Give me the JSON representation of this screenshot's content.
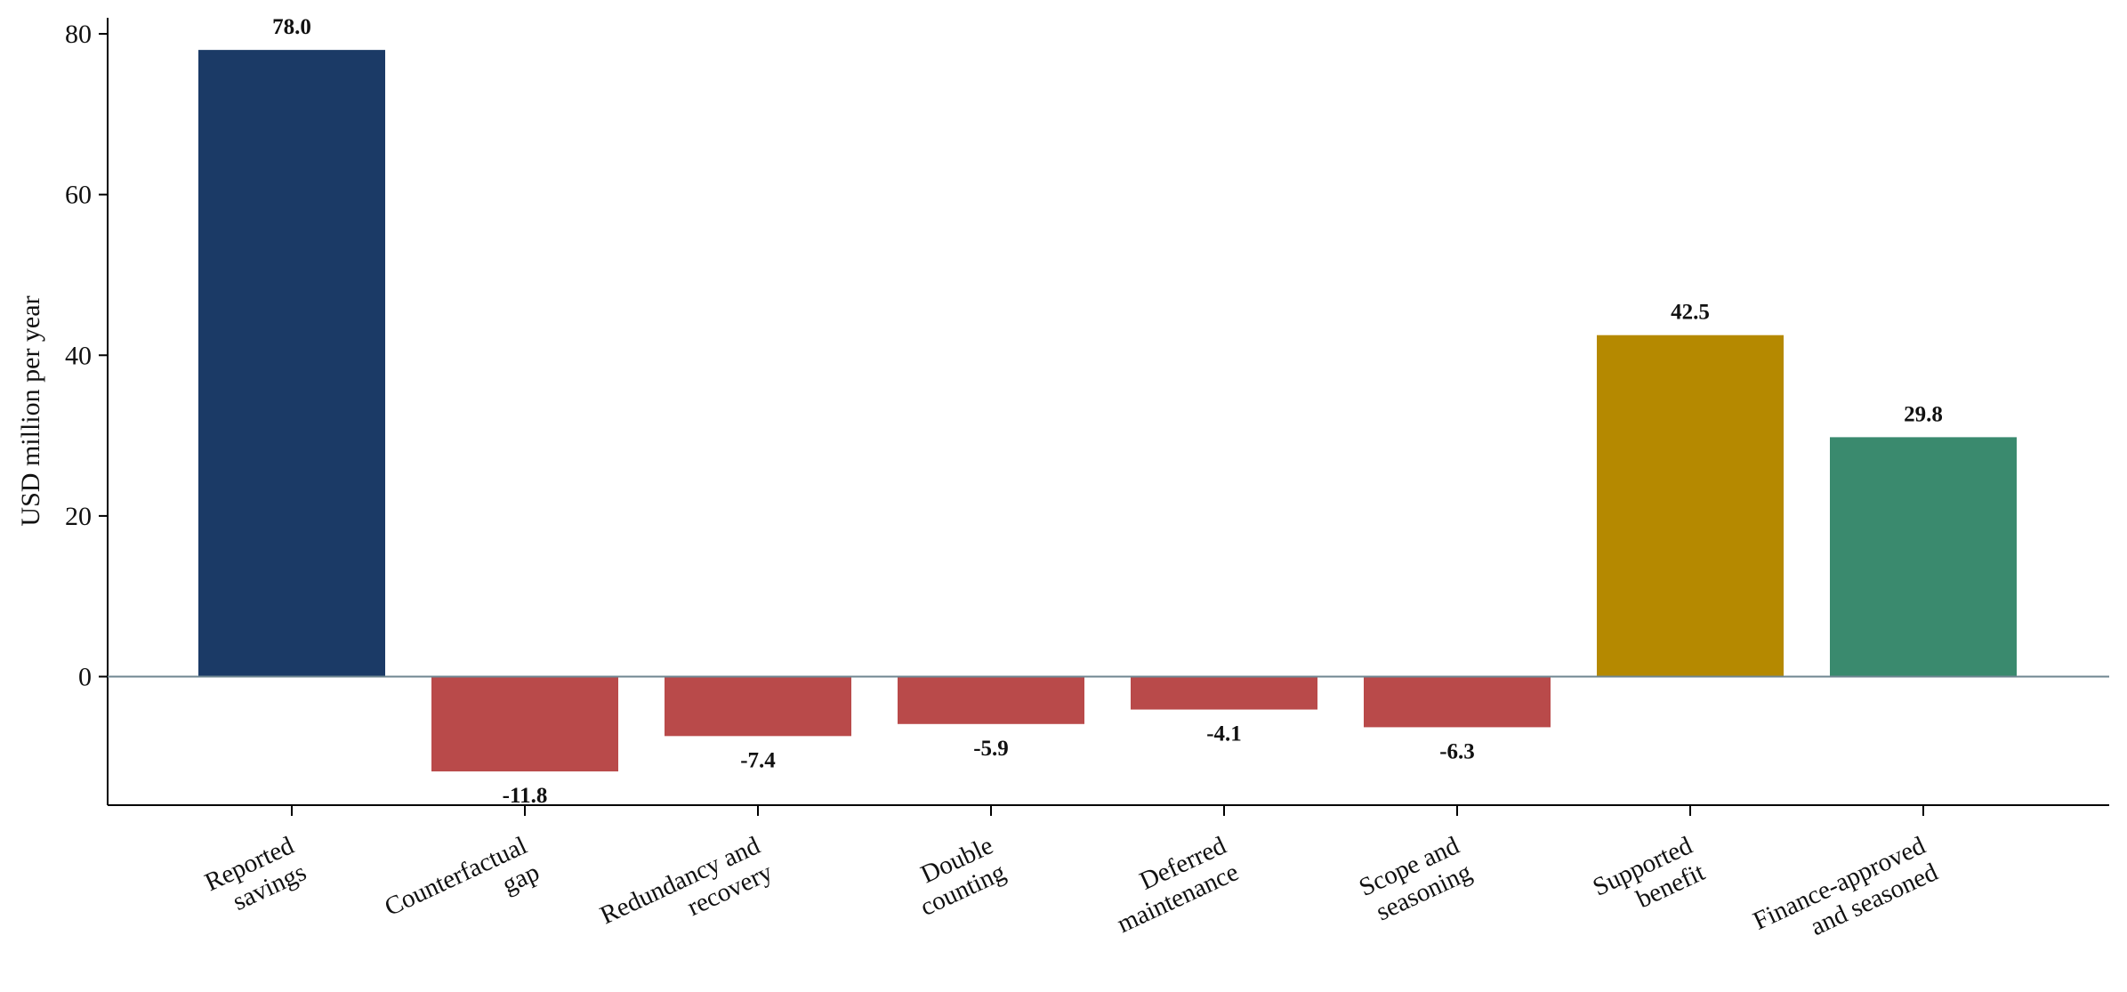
{
  "chart_data": {
    "type": "bar",
    "title": "",
    "xlabel": "",
    "ylabel": "USD million per year",
    "ylim": [
      -16,
      82
    ],
    "yticks": [
      0,
      20,
      40,
      60,
      80
    ],
    "grid": false,
    "legend": "none",
    "categories": [
      [
        "Reported",
        "savings"
      ],
      [
        "Counterfactual",
        "gap"
      ],
      [
        "Redundancy and",
        "recovery"
      ],
      [
        "Double",
        "counting"
      ],
      [
        "Deferred",
        "maintenance"
      ],
      [
        "Scope and",
        "seasoning"
      ],
      [
        "Supported",
        "benefit"
      ],
      [
        "Finance-approved",
        "and seasoned"
      ]
    ],
    "values": [
      78.0,
      -11.8,
      -7.4,
      -5.9,
      -4.1,
      -6.3,
      42.5,
      29.8
    ],
    "value_labels": [
      "78.0",
      "-11.8",
      "-7.4",
      "-5.9",
      "-4.1",
      "-6.3",
      "42.5",
      "29.8"
    ],
    "colors": [
      "#1b3a66",
      "#b94a4a",
      "#b94a4a",
      "#b94a4a",
      "#b94a4a",
      "#b94a4a",
      "#b58900",
      "#3a8a6e"
    ],
    "zero_line_color": "#6f8691"
  }
}
